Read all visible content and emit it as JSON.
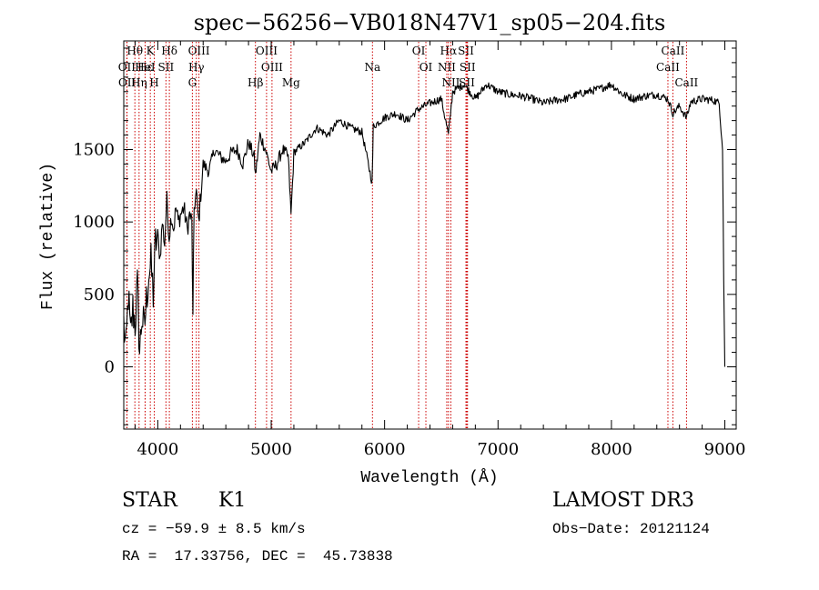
{
  "chart_data": {
    "type": "line",
    "title": "spec−56256−VB018N47V1_sp05−204.fits",
    "xlabel": "Wavelength (Å)",
    "ylabel": "Flux (relative)",
    "xlim": [
      3700,
      9100
    ],
    "ylim": [
      -430,
      2250
    ],
    "xticks": [
      4000,
      5000,
      6000,
      7000,
      8000,
      9000
    ],
    "yticks": [
      0,
      500,
      1000,
      1500
    ],
    "series": [
      {
        "name": "flux",
        "x": [
          3700,
          3720,
          3740,
          3760,
          3780,
          3800,
          3820,
          3840,
          3860,
          3880,
          3900,
          3920,
          3940,
          3960,
          3980,
          4000,
          4020,
          4040,
          4060,
          4080,
          4100,
          4120,
          4140,
          4160,
          4180,
          4200,
          4230,
          4260,
          4280,
          4300,
          4310,
          4320,
          4340,
          4360,
          4380,
          4400,
          4450,
          4500,
          4550,
          4600,
          4650,
          4700,
          4750,
          4800,
          4850,
          4861,
          4900,
          4950,
          5000,
          5050,
          5100,
          5150,
          5175,
          5200,
          5300,
          5400,
          5500,
          5600,
          5700,
          5800,
          5890,
          5900,
          6000,
          6100,
          6200,
          6300,
          6400,
          6500,
          6563,
          6600,
          6700,
          6800,
          6900,
          7000,
          7100,
          7200,
          7300,
          7400,
          7500,
          7600,
          7700,
          7800,
          7900,
          8000,
          8100,
          8200,
          8300,
          8400,
          8498,
          8542,
          8600,
          8662,
          8700,
          8800,
          8900,
          8950,
          8980,
          8990,
          9000
        ],
        "y": [
          300,
          100,
          500,
          200,
          400,
          300,
          550,
          100,
          350,
          250,
          450,
          650,
          700,
          500,
          850,
          900,
          750,
          1000,
          850,
          1150,
          900,
          1050,
          950,
          1100,
          1000,
          1050,
          1100,
          950,
          1050,
          1000,
          320,
          1100,
          1200,
          1000,
          1200,
          1400,
          1350,
          1500,
          1450,
          1420,
          1480,
          1500,
          1400,
          1550,
          1450,
          1320,
          1600,
          1500,
          1350,
          1400,
          1500,
          1450,
          1050,
          1480,
          1550,
          1650,
          1600,
          1700,
          1650,
          1620,
          1270,
          1660,
          1720,
          1750,
          1700,
          1780,
          1820,
          1850,
          1600,
          1900,
          1950,
          1850,
          1950,
          1900,
          1880,
          1870,
          1850,
          1820,
          1840,
          1850,
          1880,
          1900,
          1920,
          1950,
          1880,
          1850,
          1870,
          1880,
          1850,
          1750,
          1800,
          1720,
          1830,
          1850,
          1840,
          1820,
          1500,
          600,
          0
        ]
      }
    ],
    "line_markers": [
      {
        "label": "Hθ",
        "x": 3798,
        "row": 0
      },
      {
        "label": "OII",
        "x": 3727,
        "row": 1
      },
      {
        "label": "OII",
        "x": 3729,
        "row": 2
      },
      {
        "label": "K",
        "x": 3934,
        "row": 0
      },
      {
        "label": "Hε",
        "x": 3889,
        "row": 1
      },
      {
        "label": "HeI",
        "x": 3888,
        "row": 1
      },
      {
        "label": "Hη",
        "x": 3835,
        "row": 2
      },
      {
        "label": "H",
        "x": 3969,
        "row": 2
      },
      {
        "label": "Hδ",
        "x": 4102,
        "row": 0
      },
      {
        "label": "SII",
        "x": 4072,
        "row": 1
      },
      {
        "label": "OIII",
        "x": 4363,
        "row": 0
      },
      {
        "label": "Hγ",
        "x": 4340,
        "row": 1
      },
      {
        "label": "G",
        "x": 4305,
        "row": 2
      },
      {
        "label": "OIII",
        "x": 4959,
        "row": 0
      },
      {
        "label": "OIII",
        "x": 5007,
        "row": 1
      },
      {
        "label": "Hβ",
        "x": 4861,
        "row": 2
      },
      {
        "label": "Mg",
        "x": 5175,
        "row": 2
      },
      {
        "label": "Na",
        "x": 5893,
        "row": 1
      },
      {
        "label": "OI",
        "x": 6300,
        "row": 0
      },
      {
        "label": "OI",
        "x": 6364,
        "row": 1
      },
      {
        "label": "Hα",
        "x": 6563,
        "row": 0
      },
      {
        "label": "NII",
        "x": 6548,
        "row": 1
      },
      {
        "label": "SII",
        "x": 6717,
        "row": 0
      },
      {
        "label": "SII",
        "x": 6731,
        "row": 1
      },
      {
        "label": "NII",
        "x": 6584,
        "row": 2
      },
      {
        "label": "SII",
        "x": 6725,
        "row": 2
      },
      {
        "label": "CaII",
        "x": 8542,
        "row": 0
      },
      {
        "label": "CaII",
        "x": 8498,
        "row": 1
      },
      {
        "label": "CaII",
        "x": 8662,
        "row": 2
      }
    ]
  },
  "info": {
    "class": "STAR",
    "subclass": "K1",
    "survey": "LAMOST DR3",
    "cz": "cz = −59.9 ± 8.5 km/s",
    "obs_date": "Obs−Date: 20121124",
    "radec": "RA =  17.33756, DEC =  45.73838"
  },
  "colors": {
    "marker": "#cc0000",
    "line": "#000000",
    "background": "#ffffff"
  }
}
